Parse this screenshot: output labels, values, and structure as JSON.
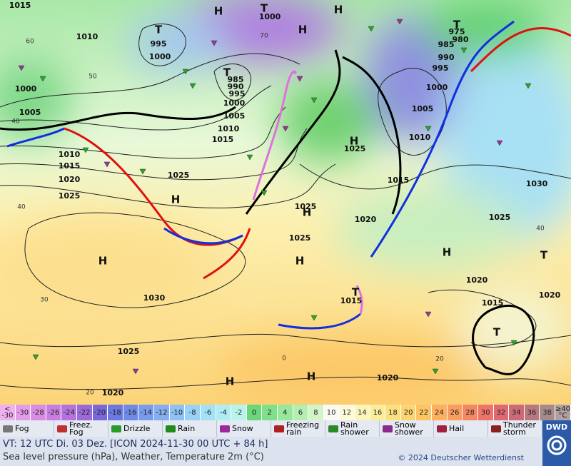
{
  "map": {
    "pressure_labels": [
      "1015",
      "1010",
      "1000",
      "1005",
      "1010",
      "1015",
      "1020",
      "1025",
      "1025",
      "1000",
      "995",
      "1000",
      "985",
      "990",
      "995",
      "1000",
      "1005",
      "1010",
      "1015",
      "1025",
      "1015",
      "1025",
      "1020",
      "1025",
      "1030",
      "1025",
      "1020",
      "1020",
      "1015",
      "1020",
      "1015",
      "1020",
      "1025",
      "1030",
      "1005",
      "1010",
      "1000",
      "995",
      "990",
      "985",
      "975",
      "980"
    ],
    "system_labels": [
      "H",
      "T",
      "H",
      "H",
      "T",
      "T",
      "H",
      "H",
      "H",
      "H",
      "H",
      "T",
      "H",
      "T",
      "T",
      "H",
      "H",
      "T"
    ],
    "isotherm_labels": [
      "60",
      "50",
      "40",
      "40",
      "30",
      "20",
      "70",
      "40",
      "20",
      "0"
    ]
  },
  "scale": [
    {
      "label": "<\n-30",
      "color": "#f0b0f0"
    },
    {
      "label": "-30",
      "color": "#e49ce8"
    },
    {
      "label": "-28",
      "color": "#d88ce4"
    },
    {
      "label": "-26",
      "color": "#c87ee0"
    },
    {
      "label": "-24",
      "color": "#b472dc"
    },
    {
      "label": "-22",
      "color": "#9a6ad8"
    },
    {
      "label": "-20",
      "color": "#7868d8"
    },
    {
      "label": "-18",
      "color": "#6a78e0"
    },
    {
      "label": "-16",
      "color": "#6e8ae6"
    },
    {
      "label": "-14",
      "color": "#789cec"
    },
    {
      "label": "-12",
      "color": "#84aef0"
    },
    {
      "label": "-10",
      "color": "#8ec2f4"
    },
    {
      "label": "-8",
      "color": "#98d2f6"
    },
    {
      "label": "-6",
      "color": "#a4e0f6"
    },
    {
      "label": "-4",
      "color": "#b0ecf4"
    },
    {
      "label": "-2",
      "color": "#b8f4ec"
    },
    {
      "label": "0",
      "color": "#6ad87a"
    },
    {
      "label": "2",
      "color": "#80e08a"
    },
    {
      "label": "4",
      "color": "#98e89c"
    },
    {
      "label": "6",
      "color": "#b4eeb0"
    },
    {
      "label": "8",
      "color": "#d2f4c8"
    },
    {
      "label": "10",
      "color": "#fafaf4"
    },
    {
      "label": "12",
      "color": "#fcfad8"
    },
    {
      "label": "14",
      "color": "#fcf4b8"
    },
    {
      "label": "16",
      "color": "#fcec9c"
    },
    {
      "label": "18",
      "color": "#fce080"
    },
    {
      "label": "20",
      "color": "#fcd470"
    },
    {
      "label": "22",
      "color": "#fcc464"
    },
    {
      "label": "24",
      "color": "#fcb060"
    },
    {
      "label": "26",
      "color": "#f89c60"
    },
    {
      "label": "28",
      "color": "#f48862"
    },
    {
      "label": "30",
      "color": "#ee7468"
    },
    {
      "label": "32",
      "color": "#e06872"
    },
    {
      "label": "34",
      "color": "#cc6a78"
    },
    {
      "label": "36",
      "color": "#b87880"
    },
    {
      "label": "38",
      "color": "#a88a8a"
    },
    {
      "label": "≥40\n°C",
      "color": "#b0a0a0"
    }
  ],
  "legend": [
    {
      "label": "Fog",
      "color": "#777"
    },
    {
      "label": "Freez.\nFog",
      "color": "#c03030"
    },
    {
      "label": "Drizzle",
      "color": "#2a9a2a"
    },
    {
      "label": "Rain",
      "color": "#1f8a1f"
    },
    {
      "label": "Snow",
      "color": "#9a2a9a"
    },
    {
      "label": "Freezing\nrain",
      "color": "#b02020"
    },
    {
      "label": "Rain\nshower",
      "color": "#2a8a2a"
    },
    {
      "label": "Snow\nshower",
      "color": "#8a2a8a"
    },
    {
      "label": "Hail",
      "color": "#a02040"
    },
    {
      "label": "Thunder\nstorm",
      "color": "#8a2020"
    }
  ],
  "footer": {
    "valid_time": "VT: 12 UTC Di.  03 Dez. [ICON 2024-11-30  00 UTC + 84 h]",
    "description": "Sea level pressure (hPa), Weather, Temperature 2m (°C)",
    "copyright": "© 2024 Deutscher Wetterdienst",
    "logo": "DWD"
  }
}
